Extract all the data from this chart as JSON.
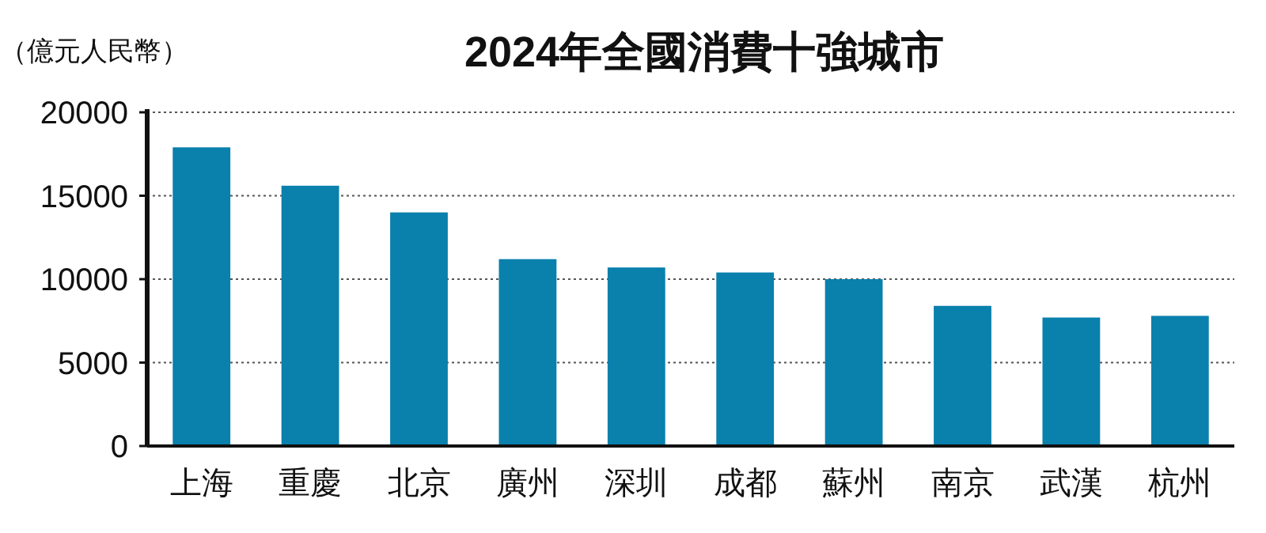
{
  "chart_data": {
    "type": "bar",
    "title": "2024年全國消費十強城市",
    "ylabel": "（億元人民幣）",
    "categories": [
      "上海",
      "重慶",
      "北京",
      "廣州",
      "深圳",
      "成都",
      "蘇州",
      "南京",
      "武漢",
      "杭州"
    ],
    "values": [
      17900,
      15600,
      14000,
      11200,
      10700,
      10400,
      10000,
      8400,
      7700,
      7800
    ],
    "color": "#0a80ad",
    "ylim": [
      0,
      20000
    ],
    "yticks": [
      0,
      5000,
      10000,
      15000,
      20000
    ],
    "grid": "y"
  }
}
